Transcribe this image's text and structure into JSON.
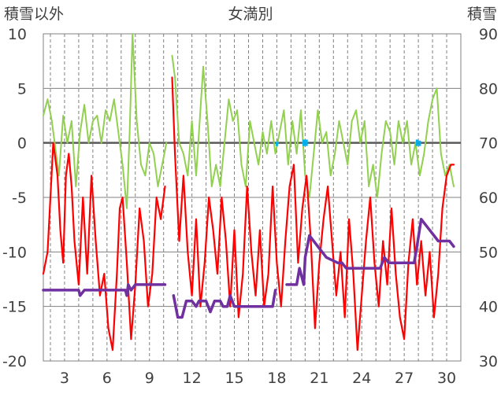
{
  "chart_data": {
    "type": "line",
    "title": "女満別",
    "ylabel_left": "積雪以外",
    "ylabel_right": "積雪",
    "xlabel": "",
    "x_range": [
      1.5,
      31
    ],
    "x_tick_labels": [
      "3",
      "6",
      "9",
      "12",
      "15",
      "18",
      "21",
      "24",
      "27",
      "30"
    ],
    "x_tick_values": [
      3,
      6,
      9,
      12,
      15,
      18,
      21,
      24,
      27,
      30
    ],
    "x_gridlines": [
      2,
      3,
      4,
      5,
      6,
      7,
      8,
      9,
      10,
      11,
      12,
      13,
      14,
      15,
      16,
      17,
      18,
      19,
      20,
      21,
      22,
      23,
      24,
      25,
      26,
      27,
      28,
      29,
      30
    ],
    "ylim_left": [
      -20,
      10
    ],
    "ylim_right": [
      30,
      90
    ],
    "y_ticks_left": [
      "10",
      "5",
      "0",
      "-5",
      "-10",
      "-15",
      "-20"
    ],
    "y_ticks_left_values": [
      10,
      5,
      0,
      -5,
      -10,
      -15,
      -20
    ],
    "y_ticks_right": [
      "90",
      "80",
      "70",
      "60",
      "50",
      "40",
      "30"
    ],
    "y_ticks_right_values": [
      90,
      80,
      70,
      60,
      50,
      40,
      30
    ],
    "grid": true,
    "colors": {
      "max_temp": "#92d050",
      "min_temp": "#ff0000",
      "snow_depth": "#7030a0",
      "precip": "#00b0f0",
      "grid": "#808080",
      "zero_line": "#595959"
    },
    "series": [
      {
        "key": "max_temp",
        "axis": "left",
        "segments": [
          [
            [
              1.5,
              2.5
            ],
            [
              1.8,
              4
            ],
            [
              2.1,
              2
            ],
            [
              2.3,
              0
            ],
            [
              2.6,
              -3
            ],
            [
              2.9,
              2.5
            ],
            [
              3.2,
              0
            ],
            [
              3.5,
              2
            ],
            [
              3.8,
              -4
            ],
            [
              4.1,
              1
            ],
            [
              4.4,
              3.5
            ],
            [
              4.7,
              0
            ],
            [
              5,
              2
            ],
            [
              5.3,
              2.5
            ],
            [
              5.6,
              0
            ],
            [
              5.9,
              3
            ],
            [
              6.2,
              2
            ],
            [
              6.5,
              4
            ],
            [
              6.8,
              1
            ],
            [
              7.1,
              -2
            ],
            [
              7.4,
              -6
            ],
            [
              7.6,
              1
            ],
            [
              7.8,
              10
            ],
            [
              8.1,
              2
            ],
            [
              8.4,
              -2
            ],
            [
              8.7,
              -3
            ],
            [
              9,
              0
            ],
            [
              9.3,
              -1
            ],
            [
              9.6,
              -4
            ],
            [
              9.9,
              -2
            ],
            [
              10.2,
              0
            ]
          ],
          [
            [
              10.6,
              8
            ],
            [
              10.8,
              6
            ],
            [
              11.1,
              0
            ],
            [
              11.4,
              -1
            ],
            [
              11.7,
              -3
            ],
            [
              12,
              2
            ],
            [
              12.3,
              -3
            ],
            [
              12.5,
              1
            ],
            [
              12.8,
              7
            ],
            [
              13.1,
              2
            ],
            [
              13.4,
              -4
            ],
            [
              13.7,
              -2
            ],
            [
              14,
              -4
            ],
            [
              14.3,
              0
            ],
            [
              14.6,
              4
            ],
            [
              14.9,
              2
            ],
            [
              15.2,
              3
            ],
            [
              15.5,
              -2
            ],
            [
              15.8,
              -4
            ],
            [
              16.1,
              2
            ],
            [
              16.4,
              0
            ],
            [
              16.7,
              -2
            ],
            [
              17,
              1
            ],
            [
              17.3,
              -1
            ],
            [
              17.6,
              2
            ],
            [
              17.9,
              -1
            ],
            [
              18.2,
              1
            ],
            [
              18.5,
              3
            ],
            [
              18.8,
              -2
            ],
            [
              19.1,
              2
            ],
            [
              19.4,
              -1
            ],
            [
              19.7,
              3
            ],
            [
              20,
              -3
            ],
            [
              20.3,
              -5
            ],
            [
              20.6,
              -1
            ],
            [
              20.9,
              3
            ],
            [
              21.2,
              0
            ],
            [
              21.5,
              1
            ],
            [
              21.8,
              -3
            ],
            [
              22.1,
              -1
            ],
            [
              22.4,
              2
            ],
            [
              22.7,
              0
            ],
            [
              23,
              -2
            ],
            [
              23.3,
              2
            ],
            [
              23.6,
              3
            ],
            [
              23.9,
              0
            ],
            [
              24.2,
              2
            ],
            [
              24.5,
              -4
            ],
            [
              24.8,
              -2
            ],
            [
              25.1,
              -5
            ],
            [
              25.4,
              -1
            ],
            [
              25.7,
              2
            ],
            [
              26,
              1
            ],
            [
              26.3,
              -2
            ],
            [
              26.6,
              2
            ],
            [
              26.9,
              0
            ],
            [
              27.2,
              2
            ],
            [
              27.5,
              -2
            ],
            [
              27.8,
              0
            ],
            [
              28.1,
              -3
            ],
            [
              28.4,
              -1
            ],
            [
              28.7,
              2
            ],
            [
              29,
              4
            ],
            [
              29.3,
              5
            ],
            [
              29.6,
              -1
            ],
            [
              29.9,
              -3
            ],
            [
              30.2,
              -2
            ],
            [
              30.5,
              -4
            ]
          ]
        ]
      },
      {
        "key": "min_temp",
        "axis": "left",
        "segments": [
          [
            [
              1.5,
              -12
            ],
            [
              1.8,
              -10
            ],
            [
              2,
              -5
            ],
            [
              2.2,
              0
            ],
            [
              2.5,
              -3
            ],
            [
              2.7,
              -8
            ],
            [
              2.9,
              -11
            ],
            [
              3.1,
              -3
            ],
            [
              3.3,
              -1
            ],
            [
              3.5,
              -4
            ],
            [
              3.7,
              -9
            ],
            [
              4,
              -13
            ],
            [
              4.3,
              -5
            ],
            [
              4.6,
              -12
            ],
            [
              4.9,
              -3
            ],
            [
              5.2,
              -9
            ],
            [
              5.5,
              -14
            ],
            [
              5.8,
              -12
            ],
            [
              6.1,
              -17
            ],
            [
              6.4,
              -19
            ],
            [
              6.7,
              -12
            ],
            [
              6.9,
              -6
            ],
            [
              7.1,
              -5
            ],
            [
              7.4,
              -11
            ],
            [
              7.7,
              -18
            ],
            [
              8,
              -13
            ],
            [
              8.3,
              -6
            ],
            [
              8.6,
              -9
            ],
            [
              8.9,
              -15
            ],
            [
              9.2,
              -12
            ],
            [
              9.5,
              -5
            ],
            [
              9.8,
              -7
            ],
            [
              10.1,
              -4
            ]
          ],
          [
            [
              10.6,
              6
            ],
            [
              10.8,
              -1
            ],
            [
              11.1,
              -9
            ],
            [
              11.4,
              -3
            ],
            [
              11.7,
              -10
            ],
            [
              12,
              -14
            ],
            [
              12.3,
              -7
            ],
            [
              12.6,
              -15
            ],
            [
              12.9,
              -11
            ],
            [
              13.2,
              -5
            ],
            [
              13.5,
              -8
            ],
            [
              13.8,
              -12
            ],
            [
              14.1,
              -5
            ],
            [
              14.4,
              -9
            ],
            [
              14.7,
              -15
            ],
            [
              15,
              -8
            ],
            [
              15.3,
              -16
            ],
            [
              15.6,
              -12
            ],
            [
              15.9,
              -4
            ],
            [
              16.2,
              -10
            ],
            [
              16.5,
              -14
            ],
            [
              16.8,
              -8
            ],
            [
              17.1,
              -15
            ],
            [
              17.4,
              -12
            ],
            [
              17.7,
              -4
            ],
            [
              18,
              -11
            ],
            [
              18.3,
              -15
            ],
            [
              18.6,
              -9
            ],
            [
              18.9,
              -4
            ],
            [
              19.2,
              -2
            ],
            [
              19.5,
              -11
            ],
            [
              19.8,
              -6
            ],
            [
              20.1,
              -3
            ],
            [
              20.4,
              -9
            ],
            [
              20.7,
              -17
            ],
            [
              21,
              -11
            ],
            [
              21.3,
              -7
            ],
            [
              21.6,
              -4
            ],
            [
              21.9,
              -9
            ],
            [
              22.2,
              -14
            ],
            [
              22.5,
              -10
            ],
            [
              22.8,
              -16
            ],
            [
              23.1,
              -7
            ],
            [
              23.4,
              -12
            ],
            [
              23.7,
              -19
            ],
            [
              24,
              -14
            ],
            [
              24.3,
              -9
            ],
            [
              24.6,
              -5
            ],
            [
              24.9,
              -11
            ],
            [
              25.2,
              -15
            ],
            [
              25.5,
              -9
            ],
            [
              25.8,
              -13
            ],
            [
              26.1,
              -6
            ],
            [
              26.4,
              -12
            ],
            [
              26.7,
              -16
            ],
            [
              27,
              -18
            ],
            [
              27.3,
              -11
            ],
            [
              27.6,
              -7
            ],
            [
              27.9,
              -13
            ],
            [
              28.2,
              -9
            ],
            [
              28.5,
              -14
            ],
            [
              28.8,
              -10
            ],
            [
              29.1,
              -16
            ],
            [
              29.4,
              -12
            ],
            [
              29.7,
              -6
            ],
            [
              30,
              -3
            ],
            [
              30.3,
              -2
            ],
            [
              30.5,
              -2
            ]
          ]
        ]
      },
      {
        "key": "snow_depth",
        "axis": "right",
        "segments": [
          [
            [
              1.5,
              43
            ],
            [
              4,
              43
            ],
            [
              4.1,
              42
            ],
            [
              4.4,
              43
            ],
            [
              7.3,
              43
            ],
            [
              7.4,
              42
            ],
            [
              7.5,
              44
            ],
            [
              7.7,
              43
            ],
            [
              8,
              44
            ],
            [
              10.1,
              44
            ]
          ],
          [
            [
              10.7,
              42
            ],
            [
              11,
              38
            ],
            [
              11.3,
              38
            ],
            [
              11.6,
              41
            ],
            [
              12,
              41
            ],
            [
              12.3,
              40
            ],
            [
              12.5,
              41
            ],
            [
              13,
              41
            ],
            [
              13.3,
              39
            ],
            [
              13.6,
              41
            ],
            [
              14,
              41
            ],
            [
              14.2,
              40
            ],
            [
              14.5,
              40
            ],
            [
              14.7,
              42
            ],
            [
              15,
              40
            ],
            [
              17.7,
              40
            ],
            [
              17.9,
              43
            ]
          ],
          [
            [
              18.7,
              44
            ],
            [
              19.4,
              44
            ],
            [
              19.6,
              47
            ],
            [
              19.9,
              44
            ],
            [
              20,
              49
            ],
            [
              20.3,
              53
            ],
            [
              20.6,
              52
            ],
            [
              20.9,
              51
            ],
            [
              21.2,
              50
            ],
            [
              21.5,
              49
            ],
            [
              22.3,
              48
            ],
            [
              22.6,
              48
            ],
            [
              22.9,
              47
            ],
            [
              25.3,
              47
            ],
            [
              25.6,
              49
            ],
            [
              25.9,
              48
            ],
            [
              27.7,
              48
            ],
            [
              27.9,
              51
            ],
            [
              28.2,
              56
            ],
            [
              28.5,
              55
            ],
            [
              28.8,
              54
            ],
            [
              29.1,
              53
            ],
            [
              29.4,
              52
            ],
            [
              30.2,
              52
            ],
            [
              30.5,
              51
            ]
          ]
        ]
      },
      {
        "key": "precip",
        "axis": "left",
        "bars": [
          [
            18,
            0.1
          ],
          [
            19.9,
            0.3
          ],
          [
            20.1,
            0.3
          ],
          [
            27.9,
            0.3
          ],
          [
            28.1,
            0.2
          ]
        ]
      }
    ]
  }
}
